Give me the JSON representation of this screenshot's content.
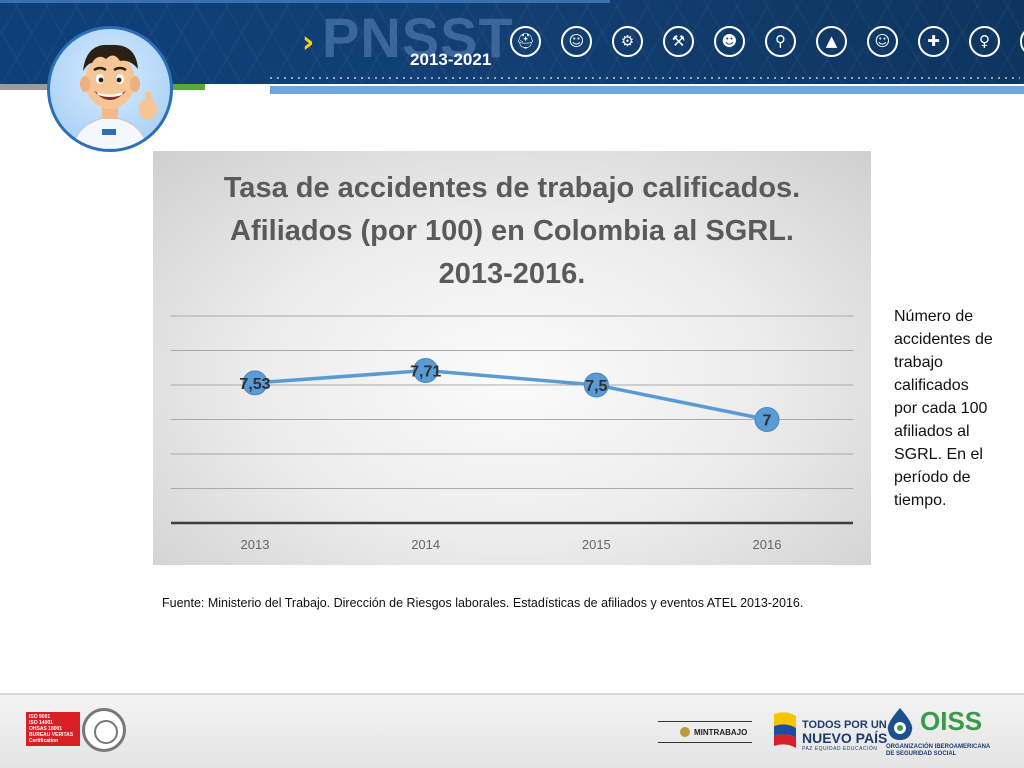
{
  "header": {
    "brand": "PNSST",
    "years": "2013-2021",
    "icons": [
      "worker-helmet-icon",
      "engineer-icon",
      "machinery-icon",
      "tools-icon",
      "firefighter-icon",
      "miner-icon",
      "safety-cone-icon",
      "construction-worker-icon",
      "doctor-icon",
      "woman-worker-icon",
      "welder-icon"
    ]
  },
  "chart_data": {
    "type": "line",
    "title_lines": [
      "Tasa de accidentes de trabajo calificados.",
      "Afiliados (por 100) en Colombia al SGRL.",
      "2013-2016."
    ],
    "categories": [
      "2013",
      "2014",
      "2015",
      "2016"
    ],
    "values": [
      7.53,
      7.71,
      7.5,
      7
    ],
    "data_labels": [
      "7,53",
      "7,71",
      "7,5",
      "7"
    ],
    "ylim": [
      5.5,
      8.5
    ],
    "grid": true,
    "legend": "none",
    "colors": {
      "line": "#5b9bd5",
      "marker": "#5b9bd5"
    }
  },
  "side_note": "Número de accidentes de trabajo calificados por cada 100 afiliados al SGRL. En el período de tiempo.",
  "source": "Fuente: Ministerio del Trabajo. Dirección de Riesgos laborales. Estadísticas de afiliados y eventos ATEL 2013-2016.",
  "footer": {
    "bureau_lines": [
      "ISO 9001",
      "ISO 14001",
      "OHSAS 18001",
      "BUREAU VERITAS",
      "Certification"
    ],
    "mintrabajo": "MINTRABAJO",
    "todos": "TODOS POR UN",
    "nuevo": "NUEVO PAÍS",
    "paz": "PAZ   EQUIDAD   EDUCACIÓN",
    "oiss": "OISS",
    "oiss_sub_1": "ORGANIZACIÓN IBEROAMERICANA",
    "oiss_sub_2": "DE SEGURIDAD SOCIAL"
  }
}
